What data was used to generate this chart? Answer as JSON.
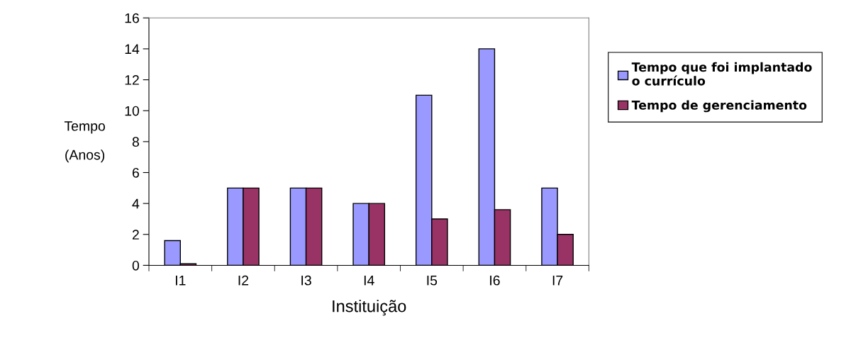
{
  "chart_data": {
    "type": "bar",
    "xlabel": "Instituição",
    "ylabel": "Tempo\n(Anos)",
    "categories": [
      "I1",
      "I2",
      "I3",
      "I4",
      "I5",
      "I6",
      "I7"
    ],
    "series": [
      {
        "name": "Tempo que foi implantado\no currículo",
        "color": "#9999ff",
        "values": [
          1.6,
          5,
          5,
          4,
          11,
          14,
          5
        ]
      },
      {
        "name": "Tempo de gerenciamento",
        "color": "#993366",
        "values": [
          0.1,
          5,
          5,
          4,
          3,
          3.6,
          2
        ]
      }
    ],
    "ylim": [
      0,
      16
    ],
    "yticks": [
      0,
      2,
      4,
      6,
      8,
      10,
      12,
      14,
      16
    ],
    "grid": false,
    "legend": "right"
  }
}
